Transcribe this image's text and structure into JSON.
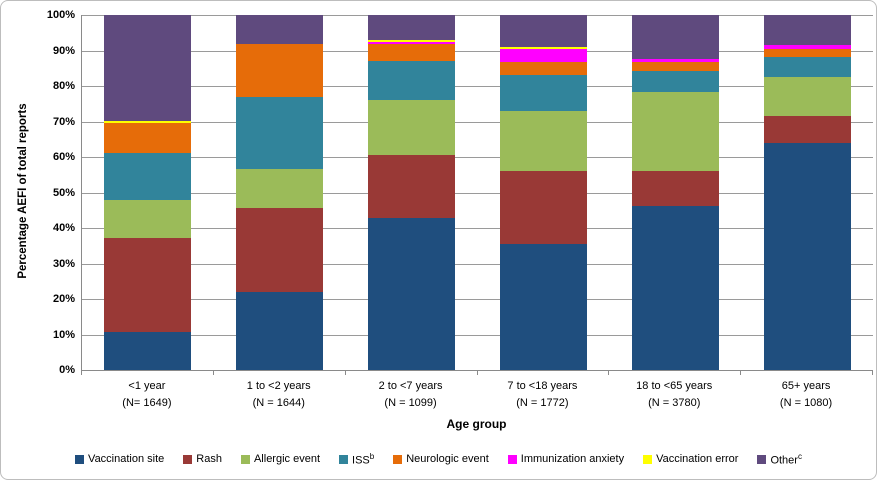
{
  "figure": {
    "y_axis_title": "Percentage AEFI of total reports",
    "x_axis_title": "Age group"
  },
  "chart_data": {
    "type": "bar",
    "stacked": true,
    "units": "percent of total reports",
    "title": "",
    "xlabel": "Age group",
    "ylabel": "Percentage AEFI of total reports",
    "ylim": [
      0,
      100
    ],
    "grid": true,
    "legend_position": "bottom",
    "yticks": [
      "0%",
      "10%",
      "20%",
      "30%",
      "40%",
      "50%",
      "60%",
      "70%",
      "80%",
      "90%",
      "100%"
    ],
    "categories": [
      {
        "label": "<1 year",
        "n": "(N= 1649)"
      },
      {
        "label": "1 to <2 years",
        "n": "(N = 1644)"
      },
      {
        "label": "2 to <7 years",
        "n": "(N = 1099)"
      },
      {
        "label": "7 to <18 years",
        "n": "(N = 1772)"
      },
      {
        "label": "18 to <65 years",
        "n": "(N = 3780)"
      },
      {
        "label": "65+ years",
        "n": "(N = 1080)"
      }
    ],
    "series": [
      {
        "name": "Vaccination site",
        "sup": "",
        "color": "#1F4E7E",
        "values": [
          10.7,
          22.0,
          42.9,
          35.6,
          46.2,
          64.0
        ]
      },
      {
        "name": "Rash",
        "sup": "",
        "color": "#993936",
        "values": [
          26.6,
          23.7,
          17.8,
          20.6,
          9.8,
          7.5
        ]
      },
      {
        "name": "Allergic event",
        "sup": "",
        "color": "#9BBB59",
        "values": [
          10.5,
          11.0,
          15.5,
          16.8,
          22.4,
          11.0
        ]
      },
      {
        "name": "ISS",
        "sup": "b",
        "color": "#31849B",
        "values": [
          13.4,
          20.3,
          10.8,
          10.0,
          5.7,
          5.7
        ]
      },
      {
        "name": "Neurologic event",
        "sup": "",
        "color": "#E66C09",
        "values": [
          8.4,
          14.7,
          4.7,
          3.8,
          2.6,
          2.2
        ]
      },
      {
        "name": "Immunization anxiety",
        "sup": "",
        "color": "#FF00FF",
        "values": [
          0.0,
          0.0,
          0.6,
          3.7,
          1.0,
          1.1
        ]
      },
      {
        "name": "Vaccination error",
        "sup": "",
        "color": "#FFFF00",
        "values": [
          0.6,
          0.0,
          0.6,
          0.6,
          0.0,
          0.0
        ]
      },
      {
        "name": "Other",
        "sup": "c",
        "color": "#5F4A7E",
        "values": [
          29.8,
          8.3,
          7.1,
          8.9,
          12.3,
          8.5
        ]
      }
    ]
  }
}
